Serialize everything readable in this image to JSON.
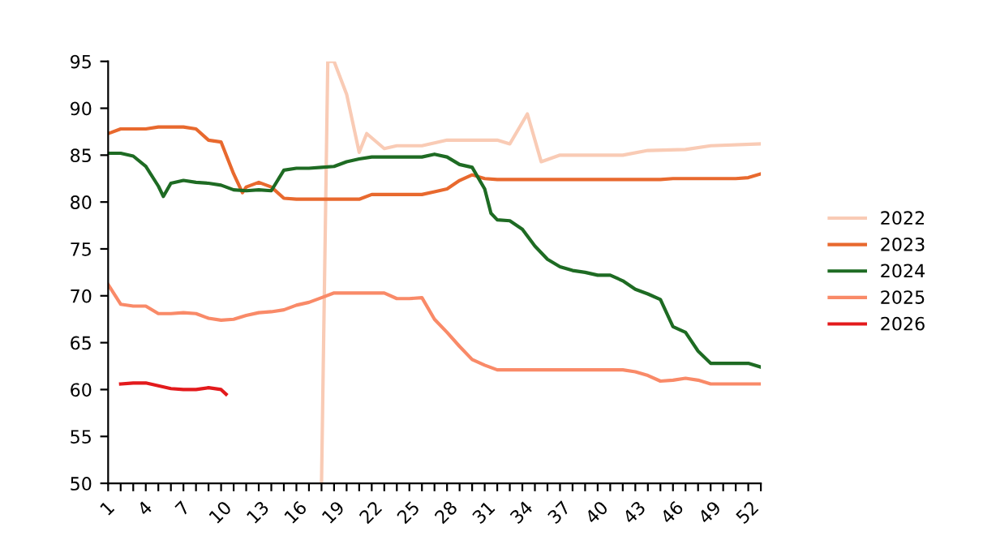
{
  "chart_data": {
    "type": "line",
    "xlim": [
      1,
      53
    ],
    "ylim": [
      50,
      95
    ],
    "yticks": [
      50,
      55,
      60,
      65,
      70,
      75,
      80,
      85,
      90,
      95
    ],
    "xticks": [
      1,
      {
        "value": 2,
        "label": null
      },
      {
        "value": 3,
        "label": null
      },
      4,
      {
        "value": 5,
        "label": null
      },
      {
        "value": 6,
        "label": null
      },
      7,
      {
        "value": 8,
        "label": null
      },
      {
        "value": 9,
        "label": null
      },
      10,
      {
        "value": 11,
        "label": null
      },
      {
        "value": 12,
        "label": null
      },
      13,
      {
        "value": 14,
        "label": null
      },
      {
        "value": 15,
        "label": null
      },
      16,
      {
        "value": 17,
        "label": null
      },
      {
        "value": 18,
        "label": null
      },
      19,
      {
        "value": 20,
        "label": null
      },
      {
        "value": 21,
        "label": null
      },
      22,
      {
        "value": 23,
        "label": null
      },
      {
        "value": 24,
        "label": null
      },
      25,
      {
        "value": 26,
        "label": null
      },
      {
        "value": 27,
        "label": null
      },
      28,
      {
        "value": 29,
        "label": null
      },
      {
        "value": 30,
        "label": null
      },
      31,
      {
        "value": 32,
        "label": null
      },
      {
        "value": 33,
        "label": null
      },
      34,
      {
        "value": 35,
        "label": null
      },
      {
        "value": 36,
        "label": null
      },
      37,
      {
        "value": 38,
        "label": null
      },
      {
        "value": 39,
        "label": null
      },
      40,
      {
        "value": 41,
        "label": null
      },
      {
        "value": 42,
        "label": null
      },
      43,
      {
        "value": 44,
        "label": null
      },
      {
        "value": 45,
        "label": null
      },
      46,
      {
        "value": 47,
        "label": null
      },
      {
        "value": 48,
        "label": null
      },
      49,
      {
        "value": 50,
        "label": null
      },
      {
        "value": 51,
        "label": null
      },
      52,
      {
        "value": 53,
        "label": null
      }
    ],
    "grid": false,
    "legend": "right",
    "marker": "none",
    "line_style": "solid",
    "series": [
      {
        "name": "2022",
        "color": "#f9cbb5",
        "x": [
          18,
          18.5,
          19,
          20,
          21,
          21.6,
          23,
          24,
          26,
          27,
          28,
          32,
          33,
          34.4,
          35.5,
          37,
          42,
          44,
          47,
          49,
          53
        ],
        "values": [
          50,
          95,
          95,
          91.5,
          85.3,
          87.3,
          85.7,
          86,
          86,
          86.3,
          86.6,
          86.6,
          86.2,
          89.4,
          84.3,
          85,
          85,
          85.5,
          85.6,
          86,
          86.2
        ]
      },
      {
        "name": "2023",
        "color": "#e8692e",
        "x": [
          1,
          2,
          3,
          4,
          5,
          6,
          7,
          8,
          9,
          10,
          11,
          11.7,
          12,
          13,
          14,
          15,
          16,
          17,
          18,
          19,
          20,
          21,
          22,
          23,
          24,
          25,
          26,
          27,
          28,
          29,
          30,
          31,
          32,
          33,
          34,
          35,
          36,
          37,
          38,
          39,
          40,
          41,
          42,
          43,
          44,
          45,
          46,
          47,
          48,
          49,
          50,
          51,
          52,
          53
        ],
        "values": [
          87.3,
          87.8,
          87.8,
          87.8,
          88.0,
          88.0,
          88.0,
          87.8,
          86.6,
          86.4,
          83.0,
          81.0,
          81.6,
          82.1,
          81.6,
          80.4,
          80.3,
          80.3,
          80.3,
          80.3,
          80.3,
          80.3,
          80.8,
          80.8,
          80.8,
          80.8,
          80.8,
          81.1,
          81.4,
          82.3,
          82.9,
          82.5,
          82.4,
          82.4,
          82.4,
          82.4,
          82.4,
          82.4,
          82.4,
          82.4,
          82.4,
          82.4,
          82.4,
          82.4,
          82.4,
          82.4,
          82.5,
          82.5,
          82.5,
          82.5,
          82.5,
          82.5,
          82.6,
          83.0
        ]
      },
      {
        "name": "2024",
        "color": "#1e6b23",
        "x": [
          1,
          2,
          3,
          4,
          5,
          5.4,
          6,
          7,
          8,
          9,
          10,
          11,
          12,
          13,
          14,
          15,
          16,
          17,
          18,
          19,
          20,
          21,
          22,
          23,
          24,
          25,
          26,
          27,
          28,
          29,
          30,
          31,
          31.5,
          32,
          33,
          34,
          35,
          36,
          37,
          38,
          39,
          40,
          41,
          42,
          43,
          44,
          45,
          46,
          47,
          48,
          49,
          50,
          51,
          52,
          53
        ],
        "values": [
          85.2,
          85.2,
          84.9,
          83.8,
          81.7,
          80.6,
          82.0,
          82.3,
          82.1,
          82.0,
          81.8,
          81.3,
          81.2,
          81.3,
          81.2,
          83.4,
          83.6,
          83.6,
          83.7,
          83.8,
          84.3,
          84.6,
          84.8,
          84.8,
          84.8,
          84.8,
          84.8,
          85.1,
          84.8,
          84.0,
          83.7,
          81.4,
          78.8,
          78.1,
          78.0,
          77.1,
          75.3,
          73.9,
          73.1,
          72.7,
          72.5,
          72.2,
          72.2,
          71.6,
          70.7,
          70.2,
          69.6,
          66.7,
          66.1,
          64.1,
          62.8,
          62.8,
          62.8,
          62.8,
          62.4
        ]
      },
      {
        "name": "2025",
        "color": "#f98a68",
        "x": [
          1,
          2,
          3,
          4,
          5,
          6,
          7,
          8,
          9,
          10,
          11,
          12,
          13,
          14,
          15,
          16,
          17,
          18,
          19,
          20,
          21,
          22,
          23,
          24,
          25,
          26,
          27,
          28,
          29,
          30,
          31,
          32,
          33,
          34,
          35,
          36,
          37,
          38,
          39,
          40,
          41,
          42,
          43,
          44,
          45,
          46,
          47,
          48,
          49,
          50,
          51,
          52,
          53
        ],
        "values": [
          71.2,
          69.1,
          68.9,
          68.9,
          68.1,
          68.1,
          68.2,
          68.1,
          67.6,
          67.4,
          67.5,
          67.9,
          68.2,
          68.3,
          68.5,
          69.0,
          69.3,
          69.8,
          70.3,
          70.3,
          70.3,
          70.3,
          70.3,
          69.7,
          69.7,
          69.8,
          67.5,
          66.1,
          64.6,
          63.2,
          62.6,
          62.1,
          62.1,
          62.1,
          62.1,
          62.1,
          62.1,
          62.1,
          62.1,
          62.1,
          62.1,
          62.1,
          61.9,
          61.5,
          60.9,
          61.0,
          61.2,
          61.0,
          60.6,
          60.6,
          60.6,
          60.6,
          60.6
        ]
      },
      {
        "name": "2026",
        "color": "#e31a1c",
        "x": [
          2,
          3,
          4,
          5,
          6,
          7,
          8,
          9,
          10,
          10.4
        ],
        "values": [
          60.6,
          60.7,
          60.7,
          60.4,
          60.1,
          60.0,
          60.0,
          60.2,
          60.0,
          59.5
        ]
      }
    ]
  }
}
